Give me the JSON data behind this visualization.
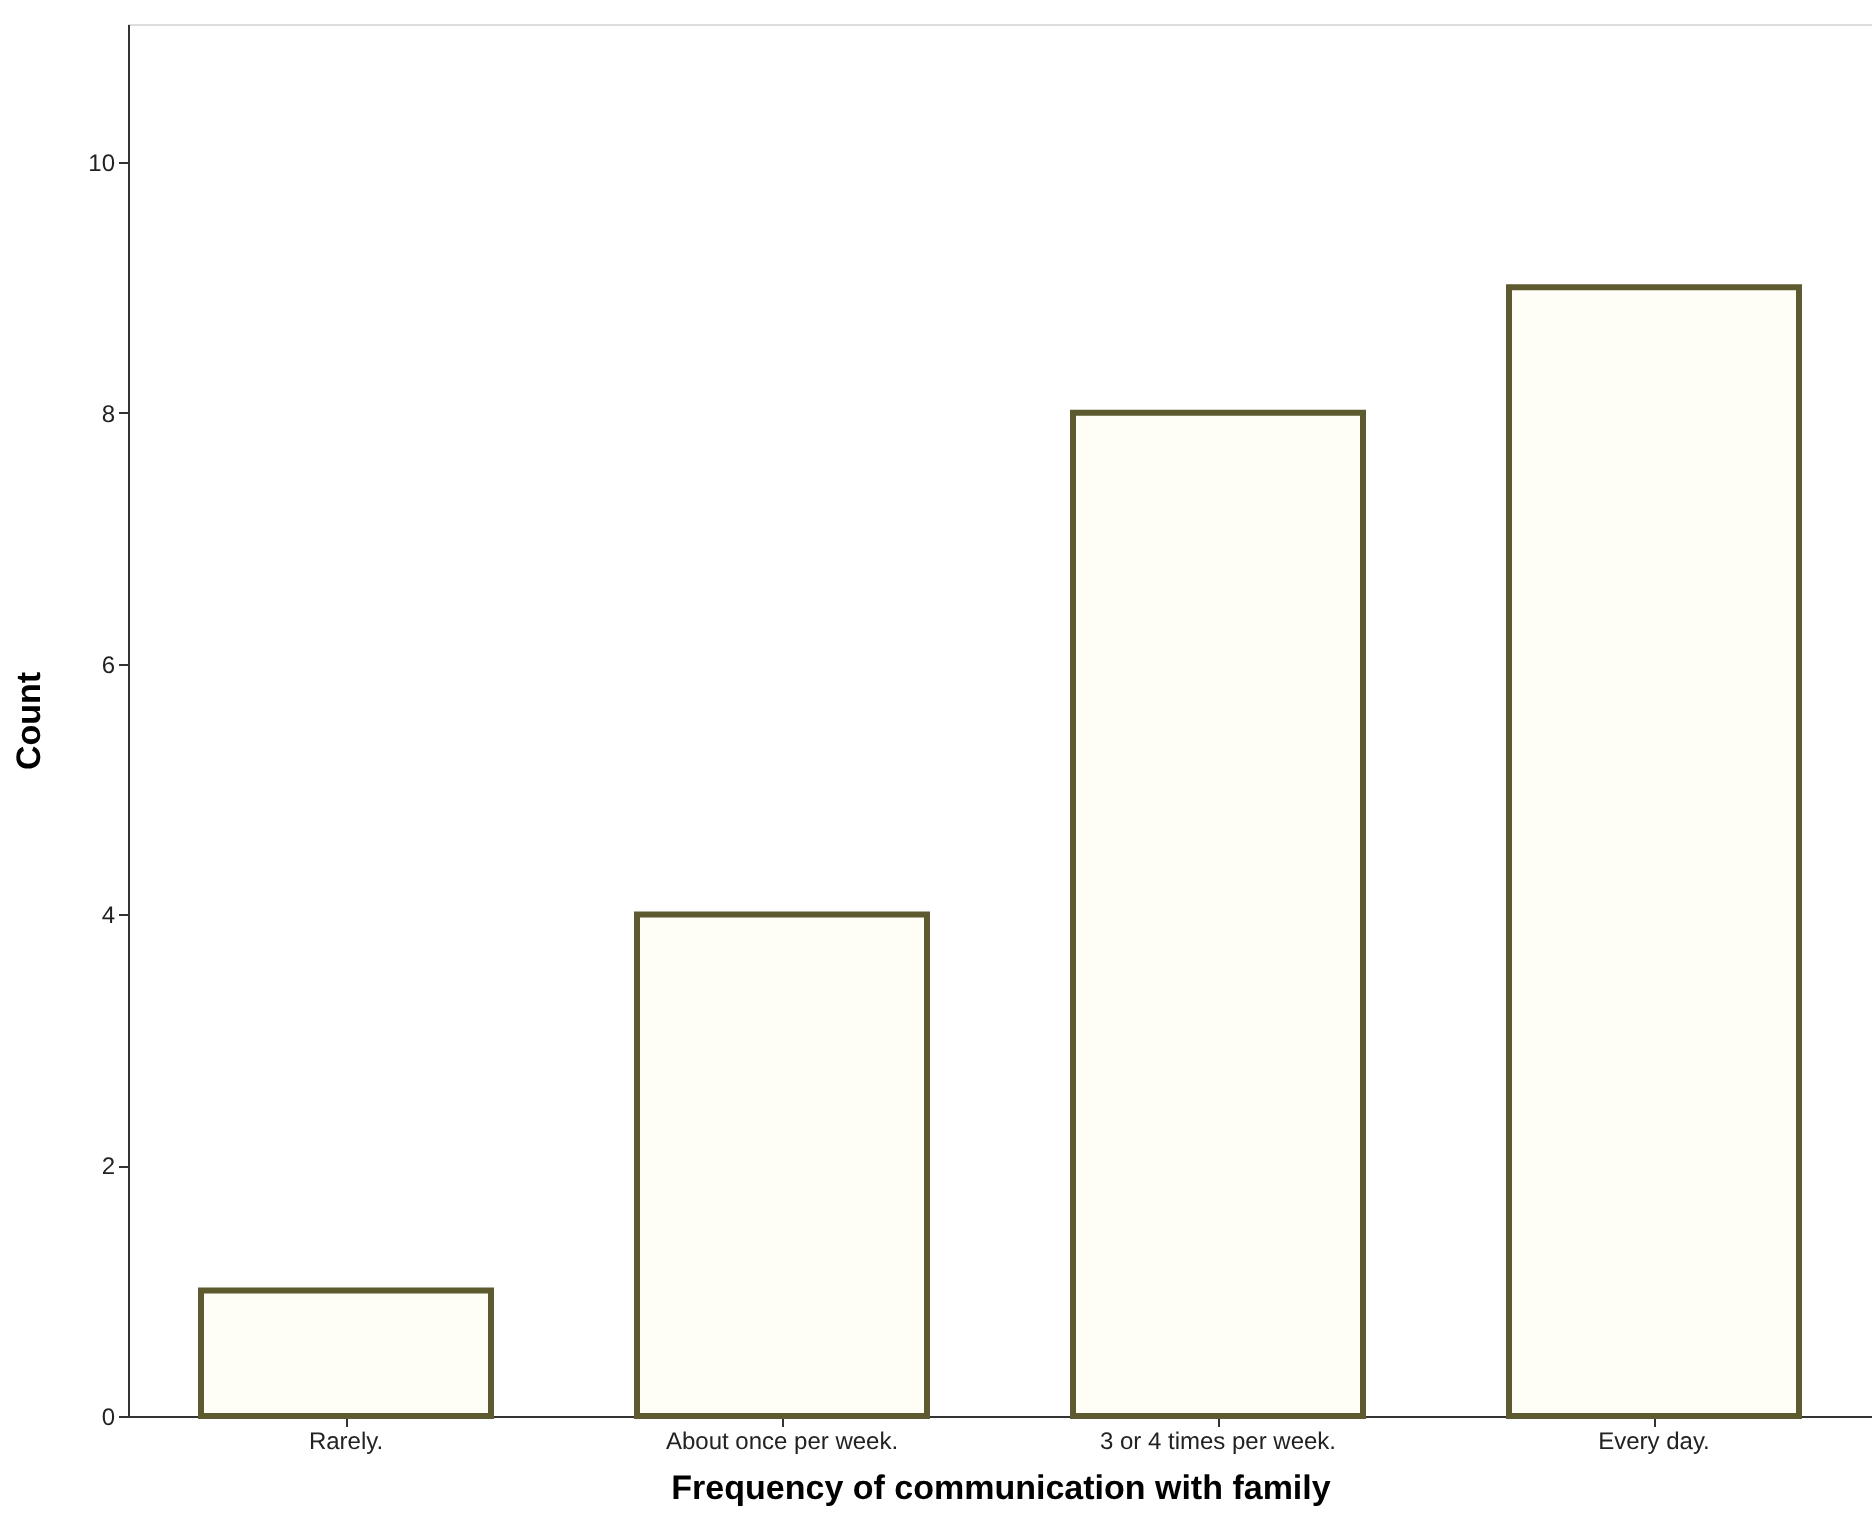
{
  "chart_data": {
    "type": "bar",
    "categories": [
      "Rarely.",
      "About once per week.",
      "3 or 4 times per week.",
      "Every day."
    ],
    "values": [
      1,
      4,
      8,
      9
    ],
    "color": "#5c5a2e",
    "xlabel": "Frequency of communication with family",
    "ylabel": "Count",
    "ylim": [
      0,
      11.1
    ],
    "yticks": [
      0,
      2,
      4,
      6,
      8,
      10
    ],
    "grid": false
  }
}
